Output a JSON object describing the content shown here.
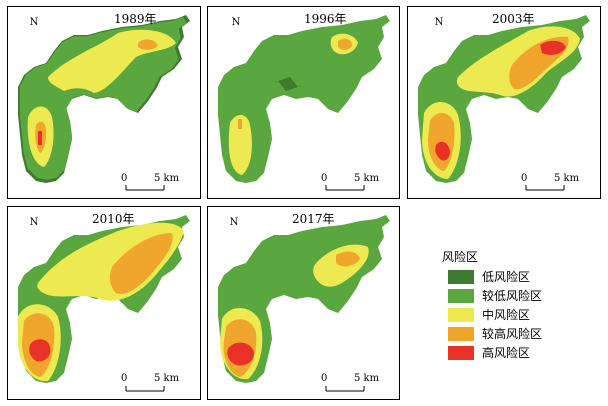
{
  "colors": {
    "low": "#3e7a2f",
    "lower": "#5aa63f",
    "medium": "#ecea50",
    "higher": "#f0a52c",
    "high": "#e83228"
  },
  "panels": [
    {
      "year": "1989年",
      "north": "N",
      "scale_zero": "0",
      "scale_label": "5 km"
    },
    {
      "year": "1996年",
      "north": "N",
      "scale_zero": "0",
      "scale_label": "5 km"
    },
    {
      "year": "2003年",
      "north": "N",
      "scale_zero": "0",
      "scale_label": "5 km"
    },
    {
      "year": "2010年",
      "north": "N",
      "scale_zero": "0",
      "scale_label": "5 km"
    },
    {
      "year": "2017年",
      "north": "N",
      "scale_zero": "0",
      "scale_label": "5 km"
    }
  ],
  "legend": {
    "title": "风险区",
    "items": [
      {
        "label": "低风险区",
        "color": "#3e7a2f"
      },
      {
        "label": "较低风险区",
        "color": "#5aa63f"
      },
      {
        "label": "中风险区",
        "color": "#ecea50"
      },
      {
        "label": "较高风险区",
        "color": "#f0a52c"
      },
      {
        "label": "高风险区",
        "color": "#e83228"
      }
    ]
  }
}
